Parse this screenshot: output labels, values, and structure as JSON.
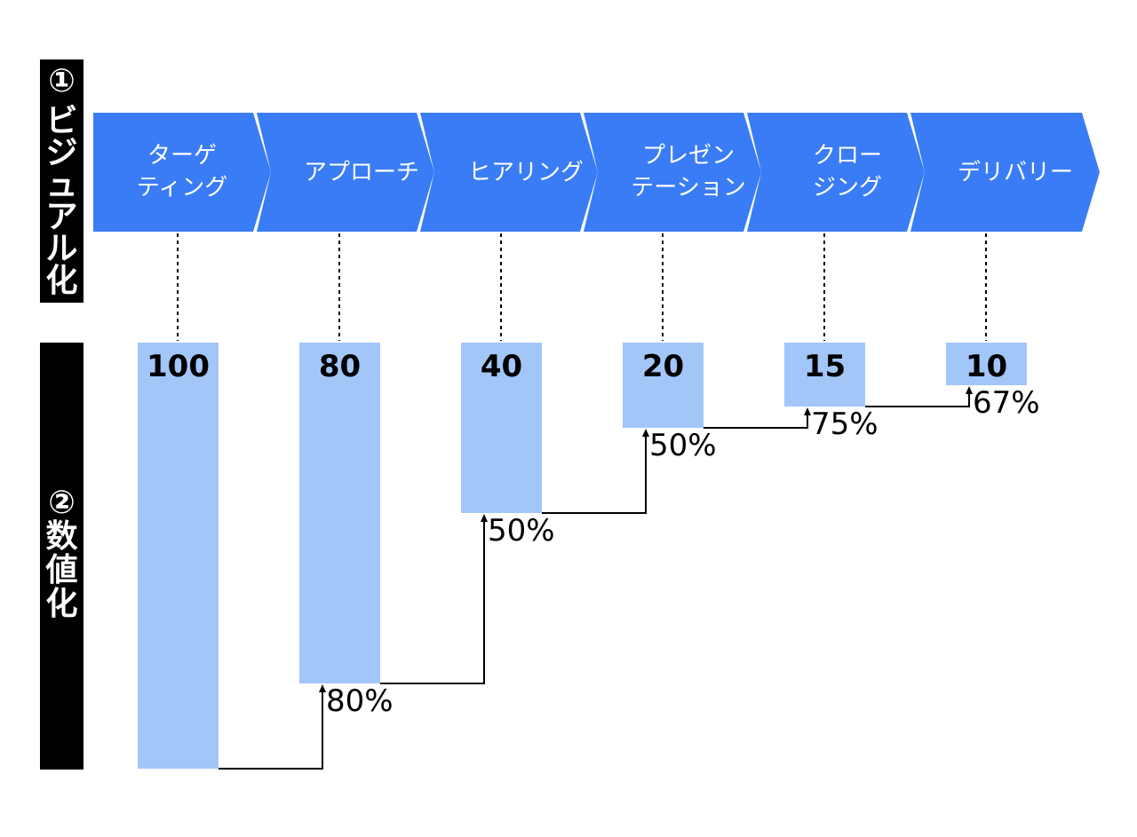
{
  "side_labels": [
    {
      "num": "①",
      "chars": [
        "ビ",
        "ジ",
        "ュ",
        "ア",
        "ル",
        "化"
      ]
    },
    {
      "num": "②",
      "chars": [
        "数",
        "値",
        "化"
      ]
    }
  ],
  "stages": [
    {
      "lines": [
        "ターゲ",
        "ティング"
      ]
    },
    {
      "lines": [
        "アプローチ"
      ]
    },
    {
      "lines": [
        "ヒアリング"
      ]
    },
    {
      "lines": [
        "プレゼン",
        "テーション"
      ]
    },
    {
      "lines": [
        "クロー",
        "ジング"
      ]
    },
    {
      "lines": [
        "デリバリー"
      ]
    }
  ],
  "chart_data": {
    "type": "bar",
    "categories": [
      "ターゲティング",
      "アプローチ",
      "ヒアリング",
      "プレゼンテーション",
      "クロージング",
      "デリバリー"
    ],
    "values": [
      100,
      80,
      40,
      20,
      15,
      10
    ],
    "value_labels": [
      "100",
      "80",
      "40",
      "20",
      "15",
      "10"
    ],
    "conversion_labels": [
      "80%",
      "50%",
      "50%",
      "75%",
      "67%"
    ],
    "ylim": [
      0,
      100
    ],
    "colors": {
      "chevron": "#3a7cf5",
      "bar": "#a3c6f9",
      "side_block": "#000000",
      "connector": "#000000"
    }
  }
}
